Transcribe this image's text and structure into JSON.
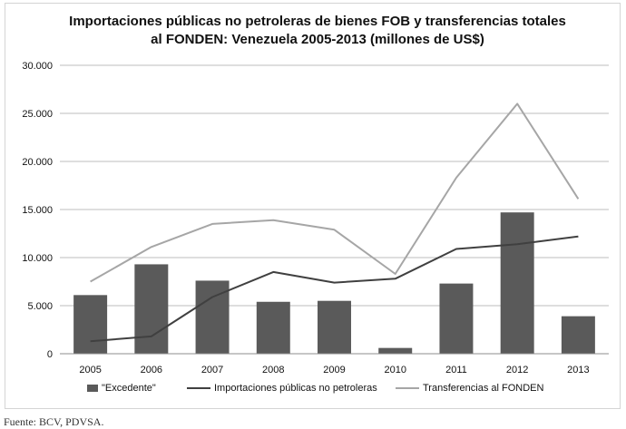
{
  "chart_data": {
    "type": "bar",
    "title_lines": [
      "Importaciones públicas no petroleras de bienes FOB y transferencias totales",
      "al FONDEN: Venezuela 2005-2013 (millones de US$)"
    ],
    "categories": [
      "2005",
      "2006",
      "2007",
      "2008",
      "2009",
      "2010",
      "2011",
      "2012",
      "2013"
    ],
    "ylim": [
      0,
      30000
    ],
    "y_ticks": [
      0,
      5000,
      10000,
      15000,
      20000,
      25000,
      30000
    ],
    "y_tick_labels": [
      "0",
      "5.000",
      "10.000",
      "15.000",
      "20.000",
      "25.000",
      "30.000"
    ],
    "grid": true,
    "legend_position": "bottom",
    "series": [
      {
        "name": "\"Excedente\"",
        "type": "bar",
        "color": "#5a5a5a",
        "values": [
          6100,
          9300,
          7600,
          5400,
          5500,
          600,
          7300,
          14700,
          3900
        ]
      },
      {
        "name": "Importaciones públicas no petroleras",
        "type": "line",
        "color": "#404040",
        "values": [
          1300,
          1800,
          5900,
          8500,
          7400,
          7800,
          10900,
          11400,
          12200
        ]
      },
      {
        "name": "Transferencias al FONDEN",
        "type": "line",
        "color": "#a6a6a6",
        "values": [
          7500,
          11100,
          13500,
          13900,
          12900,
          8300,
          18300,
          26000,
          16100
        ]
      }
    ]
  },
  "footer": {
    "source": "Fuente: BCV, PDVSA."
  }
}
